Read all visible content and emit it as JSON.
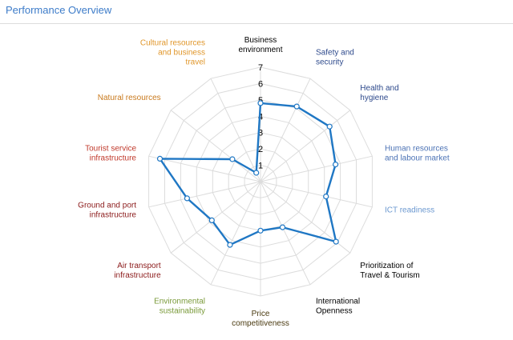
{
  "page": {
    "title": "Performance Overview"
  },
  "chart_data": {
    "type": "radar",
    "title": "",
    "rlim": [
      0,
      7
    ],
    "ticks": [
      "1",
      "2",
      "3",
      "4",
      "5",
      "6",
      "7"
    ],
    "grid": true,
    "categories": [
      {
        "label": "Business environment",
        "lines": [
          "Business",
          "environment"
        ],
        "color": "#000000"
      },
      {
        "label": "Safety and security",
        "lines": [
          "Safety and",
          "security"
        ],
        "color": "#2e4a8c"
      },
      {
        "label": "Health and hygiene",
        "lines": [
          "Health and",
          "hygiene"
        ],
        "color": "#2e4a8c"
      },
      {
        "label": "Human resources and labour market",
        "lines": [
          "Human resources",
          "and labour market"
        ],
        "color": "#4b72b5"
      },
      {
        "label": "ICT readiness",
        "lines": [
          "ICT readiness"
        ],
        "color": "#6b98d0"
      },
      {
        "label": "Prioritization of Travel & Tourism",
        "lines": [
          "Prioritization of",
          "Travel & Tourism"
        ],
        "color": "#000000"
      },
      {
        "label": "International Openness",
        "lines": [
          "International",
          "Openness"
        ],
        "color": "#000000"
      },
      {
        "label": "Price competitiveness",
        "lines": [
          "Price",
          "competitiveness"
        ],
        "color": "#4a3a10"
      },
      {
        "label": "Environmental sustainability",
        "lines": [
          "Environmental",
          "sustainability"
        ],
        "color": "#7a9a3a"
      },
      {
        "label": "Air transport infrastructure",
        "lines": [
          "Air transport",
          "infrastructure"
        ],
        "color": "#8b1a1a"
      },
      {
        "label": "Ground and port infrastructure",
        "lines": [
          "Ground and port",
          "infrastructure"
        ],
        "color": "#8b1a1a"
      },
      {
        "label": "Tourist service infrastructure",
        "lines": [
          "Tourist service",
          "infrastructure"
        ],
        "color": "#c0392b"
      },
      {
        "label": "Natural resources",
        "lines": [
          "Natural resources"
        ],
        "color": "#c97a1e"
      },
      {
        "label": "Cultural resources and business travel",
        "lines": [
          "Cultural resources",
          "and business",
          "travel"
        ],
        "color": "#e0962a"
      }
    ],
    "series": [
      {
        "values": [
          4.8,
          5.1,
          5.4,
          4.7,
          4.1,
          5.9,
          3.1,
          3.0,
          4.3,
          3.8,
          4.6,
          6.3,
          2.2,
          0.6
        ],
        "color": "#1f77c4"
      }
    ]
  }
}
